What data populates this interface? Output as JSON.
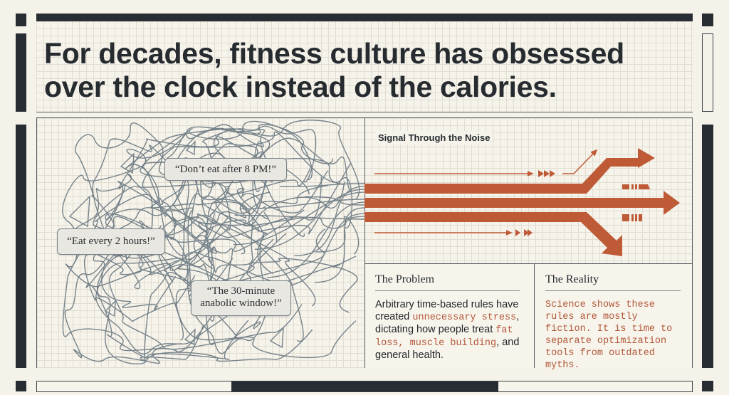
{
  "title": {
    "line1": "For decades, fitness culture has obsessed",
    "line2": "over the clock instead of the calories."
  },
  "noise": {
    "bubbles": [
      "“Don’t eat after 8 PM!”",
      "“Eat every 2 hours!”",
      "“The 30-minute",
      "anabolic window!”"
    ]
  },
  "signal": {
    "title": "Signal Through the Noise"
  },
  "problem": {
    "heading": "The Problem",
    "text1": "Arbitrary time-based rules have created",
    "highlight1": "unnecessary stress",
    "text2": ", dictating how people treat",
    "highlight2": "fat loss, muscle building",
    "text3": ", and general health."
  },
  "reality": {
    "heading": "The Reality",
    "text": "Science shows these rules are mostly fiction. It is time to separate optimization tools from outdated myths."
  },
  "colors": {
    "accent": "#bf5a36",
    "ink": "#272d33",
    "strand": "#76838a",
    "paper": "#f5f2ea"
  }
}
